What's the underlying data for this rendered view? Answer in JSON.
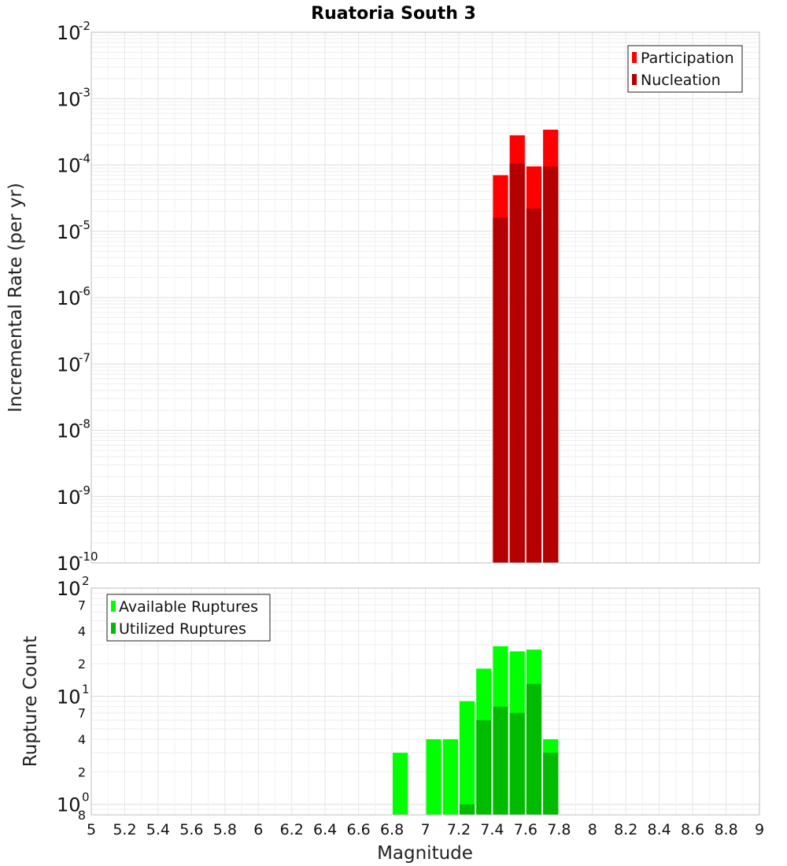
{
  "chart_data": [
    {
      "type": "bar",
      "title": "Ruatoria South 3",
      "xlabel": "",
      "ylabel": "Incremental Rate (per yr)",
      "yscale": "log",
      "ylim": [
        1e-10,
        0.01
      ],
      "xlim": [
        5,
        9
      ],
      "y_tick_bases": [
        "10",
        "10",
        "10",
        "10",
        "10",
        "10",
        "10",
        "10",
        "10"
      ],
      "y_tick_exps": [
        "-10",
        "-9",
        "-8",
        "-7",
        "-6",
        "-5",
        "-4",
        "-3",
        "-2"
      ],
      "grid": true,
      "legend_position": "top-right",
      "bin_width": 0.1,
      "x": [
        7.45,
        7.55,
        7.65,
        7.75
      ],
      "series": [
        {
          "name": "Participation",
          "color": "#ff0000",
          "values": [
            7e-05,
            0.00028,
            9.5e-05,
            0.00034
          ]
        },
        {
          "name": "Nucleation",
          "color": "#b40000",
          "values": [
            1.6e-05,
            0.000105,
            2.2e-05,
            9.5e-05
          ]
        }
      ]
    },
    {
      "type": "bar",
      "title": "",
      "xlabel": "Magnitude",
      "ylabel": "Rupture Count",
      "yscale": "log",
      "ylim": [
        0.8,
        100
      ],
      "xlim": [
        5,
        9
      ],
      "x_ticks": [
        "5",
        "5.2",
        "5.4",
        "5.6",
        "5.8",
        "6",
        "6.2",
        "6.4",
        "6.6",
        "6.8",
        "7",
        "7.2",
        "7.4",
        "7.6",
        "7.8",
        "8",
        "8.2",
        "8.4",
        "8.6",
        "8.8",
        "9"
      ],
      "y_major": [
        {
          "value": 1,
          "base": "10",
          "exp": "0"
        },
        {
          "value": 10,
          "base": "10",
          "exp": "1"
        },
        {
          "value": 100,
          "base": "10",
          "exp": "2"
        }
      ],
      "y_minor_labels": [
        {
          "value": 0.8,
          "label": "8"
        },
        {
          "value": 2,
          "label": "2"
        },
        {
          "value": 4,
          "label": "4"
        },
        {
          "value": 7,
          "label": "7"
        },
        {
          "value": 20,
          "label": "2"
        },
        {
          "value": 40,
          "label": "4"
        },
        {
          "value": 70,
          "label": "7"
        }
      ],
      "grid": true,
      "legend_position": "top-left",
      "bin_width": 0.1,
      "x": [
        6.85,
        7.05,
        7.15,
        7.25,
        7.35,
        7.45,
        7.55,
        7.65,
        7.75
      ],
      "series": [
        {
          "name": "Available Ruptures",
          "color": "#00ff00",
          "values": [
            3,
            4,
            4,
            9,
            18,
            29,
            26,
            27,
            4
          ]
        },
        {
          "name": "Utilized Ruptures",
          "color": "#00bb00",
          "values": [
            0,
            0,
            0,
            1,
            6,
            8,
            7,
            13,
            3
          ]
        }
      ]
    }
  ]
}
